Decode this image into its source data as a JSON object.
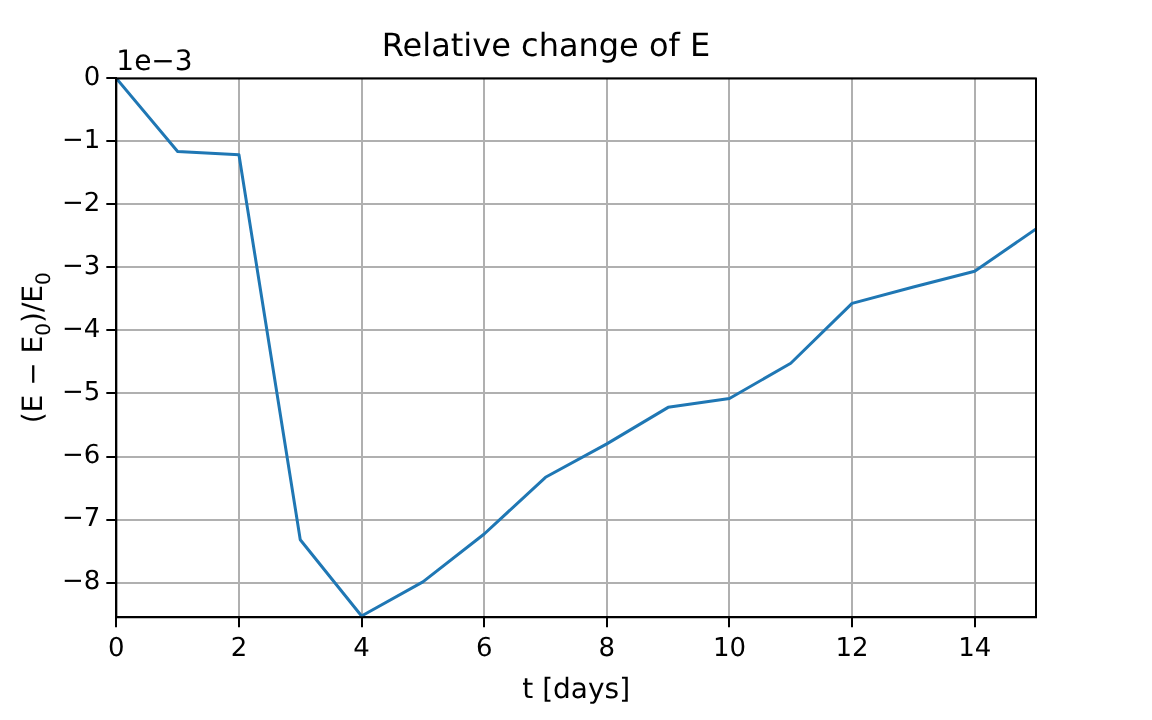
{
  "chart_data": {
    "type": "line",
    "title": "Relative change of E",
    "xlabel": "t [days]",
    "ylabel": "(E − E$_{0}$)/E$_{0}$",
    "x": [
      0,
      1,
      2,
      3,
      4,
      5,
      6,
      7,
      8,
      9,
      10,
      11,
      12,
      13,
      14,
      15
    ],
    "series": [
      {
        "color": "#1f77b4",
        "values": [
          0,
          -1.16,
          -1.21,
          -7.32,
          -8.53,
          -7.99,
          -7.23,
          -6.33,
          -5.8,
          -5.22,
          -5.08,
          -4.52,
          -3.57,
          -3.31,
          -3.06,
          -2.39
        ]
      }
    ],
    "xlim": [
      0,
      15
    ],
    "xticks": [
      0,
      2,
      4,
      6,
      8,
      10,
      12,
      14
    ],
    "ylim": [
      -8.55,
      0
    ],
    "yticks": [
      -8,
      -7,
      -6,
      -5,
      -4,
      -3,
      -2,
      -1,
      0
    ],
    "annotations": [
      "1e−3"
    ],
    "grid": true,
    "legend": false,
    "marker": "none",
    "line_style": "solid"
  }
}
